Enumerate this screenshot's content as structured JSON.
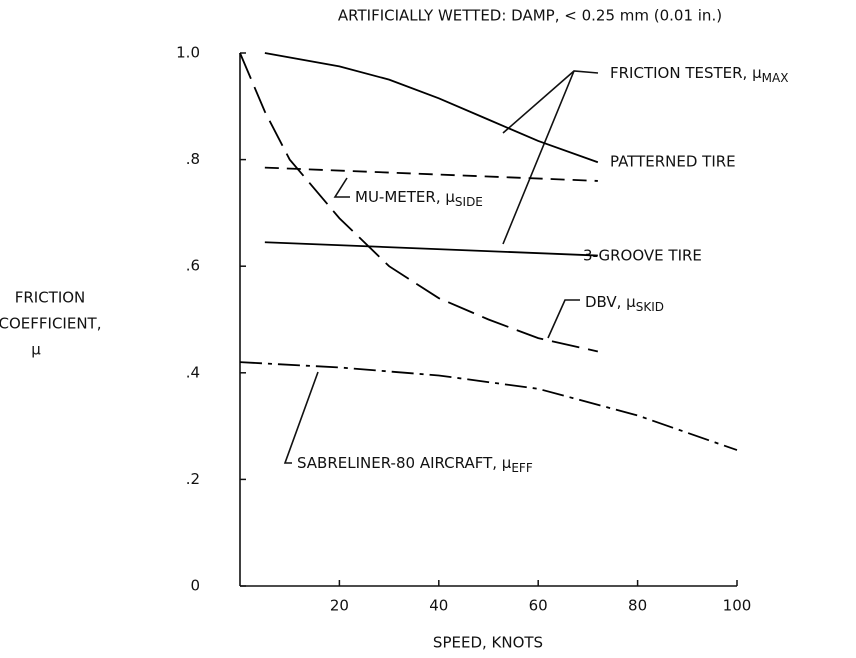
{
  "chart_data": {
    "type": "line",
    "title": "ARTIFICIALLY WETTED:  DAMP, < 0.25 mm (0.01 in.)",
    "x_label": "SPEED, KNOTS",
    "y_label": [
      "FRICTION",
      "COEFFICIENT,",
      "μ"
    ],
    "xlim": [
      0,
      100
    ],
    "ylim": [
      0,
      1.0
    ],
    "xticks": [
      20,
      40,
      60,
      80,
      100
    ],
    "yticks": [
      0,
      {
        "value": 0.2,
        "label": ".2"
      },
      {
        "value": 0.4,
        "label": ".4"
      },
      {
        "value": 0.6,
        "label": ".6"
      },
      {
        "value": 0.8,
        "label": ".8"
      },
      {
        "value": 1.0,
        "label": "1.0"
      }
    ],
    "series": [
      {
        "color": "#000000",
        "style": "solid",
        "x": [
          5,
          20,
          30,
          40,
          50,
          60,
          72
        ],
        "values": [
          1.0,
          0.975,
          0.95,
          0.915,
          0.875,
          0.835,
          0.795
        ]
      },
      {
        "color": "#000000",
        "style": "dashed",
        "x": [
          5,
          72
        ],
        "values": [
          0.785,
          0.76
        ]
      },
      {
        "color": "#000000",
        "style": "solid",
        "x": [
          5,
          72
        ],
        "values": [
          0.645,
          0.62
        ]
      },
      {
        "color": "#000000",
        "style": "longdash",
        "x": [
          0,
          5,
          10,
          20,
          30,
          40,
          50,
          60,
          72
        ],
        "values": [
          1.0,
          0.89,
          0.8,
          0.69,
          0.6,
          0.54,
          0.5,
          0.465,
          0.44
        ]
      },
      {
        "color": "#000000",
        "style": "dashdot",
        "x": [
          0,
          20,
          40,
          60,
          80,
          100
        ],
        "values": [
          0.42,
          0.41,
          0.395,
          0.37,
          0.32,
          0.255
        ]
      }
    ],
    "annotations": [
      {
        "text": "FRICTION TESTER, μ",
        "subscript": "MAX"
      },
      {
        "text": "PATTERNED TIRE"
      },
      {
        "text": "MU-METER, μ",
        "subscript": "SIDE"
      },
      {
        "text": "3-GROOVE TIRE"
      },
      {
        "text": "DBV, μ",
        "subscript": "SKID"
      },
      {
        "text": "SABRELINER-80 AIRCRAFT, μ",
        "subscript": "EFF"
      }
    ]
  }
}
